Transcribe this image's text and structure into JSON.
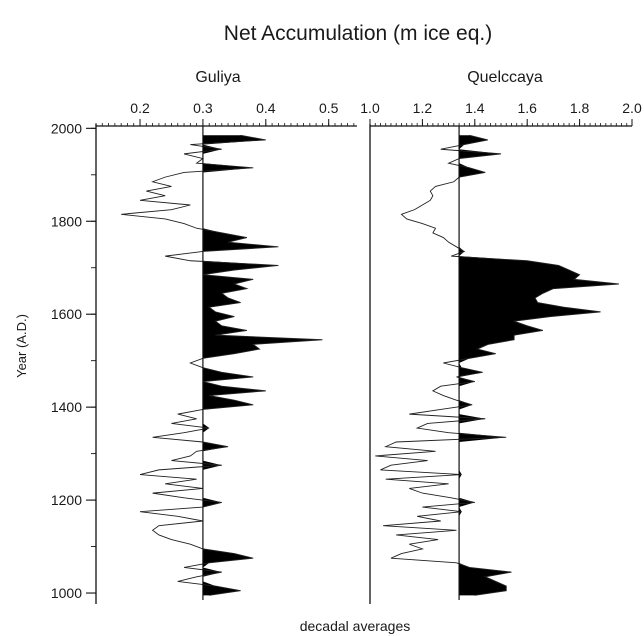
{
  "chart_data": [
    {
      "type": "area",
      "panel": "left",
      "title": "Net Accumulation (m ice eq.)",
      "subtitle": "Guliya",
      "footnote": "decadal averages",
      "xlabel": "",
      "ylabel": "Year (A.D.)",
      "xlim": [
        0.13,
        0.545
      ],
      "ylim": [
        985,
        2005
      ],
      "x_ticks": [
        "0.2",
        "0.3",
        "0.4",
        "0.5"
      ],
      "y_ticks": [
        "1000",
        "1200",
        "1400",
        "1600",
        "1800",
        "2000"
      ],
      "baseline": 0.3,
      "fill_above_baseline": "#000000",
      "series": [
        {
          "year": [
            1985,
            1975,
            1965,
            1955,
            1945,
            1935,
            1925,
            1915,
            1905,
            1895,
            1885,
            1875,
            1865,
            1855,
            1845,
            1835,
            1825,
            1815,
            1805,
            1795,
            1785,
            1775,
            1765,
            1755,
            1745,
            1735,
            1725,
            1715,
            1705,
            1695,
            1685,
            1675,
            1665,
            1655,
            1645,
            1635,
            1625,
            1615,
            1605,
            1595,
            1585,
            1575,
            1565,
            1555,
            1545,
            1535,
            1525,
            1515,
            1505,
            1495,
            1485,
            1475,
            1465,
            1455,
            1445,
            1435,
            1425,
            1415,
            1405,
            1395,
            1385,
            1375,
            1365,
            1355,
            1345,
            1335,
            1325,
            1315,
            1305,
            1295,
            1285,
            1275,
            1265,
            1255,
            1245,
            1235,
            1225,
            1215,
            1205,
            1195,
            1185,
            1175,
            1165,
            1155,
            1145,
            1135,
            1125,
            1115,
            1105,
            1095,
            1085,
            1075,
            1065,
            1055,
            1045,
            1035,
            1025,
            1015,
            1005,
            995
          ],
          "value": [
            0.36,
            0.4,
            0.28,
            0.33,
            0.27,
            0.3,
            0.29,
            0.38,
            0.27,
            0.24,
            0.22,
            0.25,
            0.21,
            0.24,
            0.2,
            0.28,
            0.25,
            0.17,
            0.24,
            0.27,
            0.29,
            0.33,
            0.37,
            0.34,
            0.42,
            0.3,
            0.24,
            0.28,
            0.42,
            0.35,
            0.3,
            0.38,
            0.35,
            0.37,
            0.33,
            0.34,
            0.36,
            0.31,
            0.32,
            0.35,
            0.32,
            0.33,
            0.37,
            0.32,
            0.49,
            0.38,
            0.39,
            0.35,
            0.3,
            0.28,
            0.3,
            0.33,
            0.38,
            0.3,
            0.33,
            0.4,
            0.31,
            0.35,
            0.38,
            0.3,
            0.26,
            0.29,
            0.25,
            0.31,
            0.27,
            0.22,
            0.3,
            0.34,
            0.29,
            0.28,
            0.25,
            0.33,
            0.23,
            0.2,
            0.29,
            0.24,
            0.3,
            0.22,
            0.27,
            0.33,
            0.3,
            0.2,
            0.26,
            0.3,
            0.23,
            0.22,
            0.23,
            0.25,
            0.28,
            0.3,
            0.35,
            0.38,
            0.31,
            0.27,
            0.33,
            0.29,
            0.26,
            0.32,
            0.36,
            0.31
          ]
        }
      ]
    },
    {
      "type": "area",
      "panel": "right",
      "subtitle": "Quelccaya",
      "xlim": [
        1.0,
        2.0
      ],
      "ylim": [
        985,
        2005
      ],
      "x_ticks": [
        "1.0",
        "1.2",
        "1.4",
        "1.6",
        "1.8",
        "2.0"
      ],
      "baseline": 1.34,
      "fill_above_baseline": "#000000",
      "series": [
        {
          "year": [
            1985,
            1975,
            1965,
            1955,
            1945,
            1935,
            1925,
            1915,
            1905,
            1895,
            1885,
            1875,
            1865,
            1855,
            1845,
            1835,
            1825,
            1815,
            1805,
            1795,
            1785,
            1775,
            1765,
            1755,
            1745,
            1735,
            1725,
            1715,
            1705,
            1695,
            1685,
            1675,
            1665,
            1655,
            1645,
            1635,
            1625,
            1615,
            1605,
            1595,
            1585,
            1575,
            1565,
            1555,
            1545,
            1535,
            1525,
            1515,
            1505,
            1495,
            1485,
            1475,
            1465,
            1455,
            1445,
            1435,
            1425,
            1415,
            1405,
            1395,
            1385,
            1375,
            1365,
            1355,
            1345,
            1335,
            1325,
            1315,
            1305,
            1295,
            1285,
            1275,
            1265,
            1255,
            1245,
            1235,
            1225,
            1215,
            1205,
            1195,
            1185,
            1175,
            1165,
            1155,
            1145,
            1135,
            1125,
            1115,
            1105,
            1095,
            1085,
            1075,
            1065,
            1055,
            1045,
            1035,
            1025,
            1015,
            1005,
            995
          ],
          "value": [
            1.38,
            1.45,
            1.36,
            1.27,
            1.5,
            1.34,
            1.3,
            1.38,
            1.44,
            1.34,
            1.32,
            1.25,
            1.23,
            1.24,
            1.23,
            1.2,
            1.17,
            1.12,
            1.14,
            1.2,
            1.25,
            1.24,
            1.28,
            1.3,
            1.33,
            1.36,
            1.31,
            1.6,
            1.72,
            1.76,
            1.8,
            1.78,
            1.95,
            1.7,
            1.66,
            1.63,
            1.64,
            1.74,
            1.88,
            1.69,
            1.55,
            1.6,
            1.66,
            1.55,
            1.55,
            1.45,
            1.41,
            1.48,
            1.38,
            1.28,
            1.35,
            1.43,
            1.33,
            1.4,
            1.27,
            1.24,
            1.28,
            1.33,
            1.39,
            1.27,
            1.15,
            1.44,
            1.22,
            1.18,
            1.3,
            1.52,
            1.1,
            1.06,
            1.25,
            1.02,
            1.22,
            1.08,
            1.04,
            1.35,
            1.06,
            1.3,
            1.15,
            1.2,
            1.31,
            1.4,
            1.2,
            1.35,
            1.18,
            1.27,
            1.05,
            1.33,
            1.1,
            1.26,
            1.15,
            1.2,
            1.12,
            1.08,
            1.33,
            1.38,
            1.54,
            1.44,
            1.48,
            1.52,
            1.52,
            1.4
          ]
        }
      ]
    }
  ]
}
